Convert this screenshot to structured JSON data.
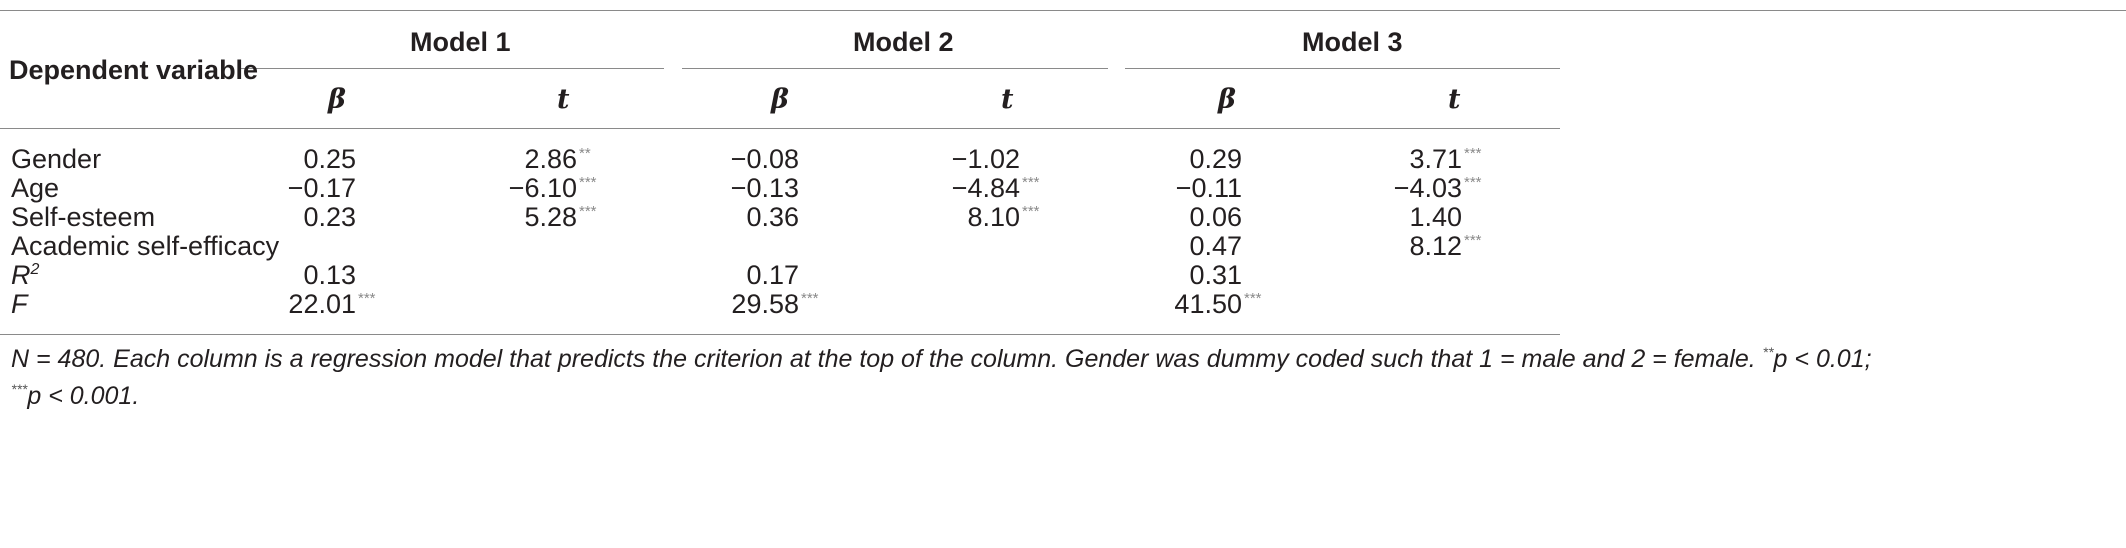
{
  "table": {
    "header": {
      "dependent_variable": "Dependent variable",
      "models": [
        "Model 1",
        "Model 2",
        "Model 3"
      ],
      "subcols": [
        "β",
        "t"
      ]
    },
    "rows": [
      {
        "label": "Gender",
        "cells": [
          {
            "v": "0.25",
            "sig": ""
          },
          {
            "v": "2.86",
            "sig": "**"
          },
          {
            "v": "−0.08",
            "sig": ""
          },
          {
            "v": "−1.02",
            "sig": ""
          },
          {
            "v": "0.29",
            "sig": ""
          },
          {
            "v": "3.71",
            "sig": "***"
          }
        ]
      },
      {
        "label": "Age",
        "cells": [
          {
            "v": "−0.17",
            "sig": ""
          },
          {
            "v": "−6.10",
            "sig": "***"
          },
          {
            "v": "−0.13",
            "sig": ""
          },
          {
            "v": "−4.84",
            "sig": "***"
          },
          {
            "v": "−0.11",
            "sig": ""
          },
          {
            "v": "−4.03",
            "sig": "***"
          }
        ]
      },
      {
        "label": "Self-esteem",
        "cells": [
          {
            "v": "0.23",
            "sig": ""
          },
          {
            "v": "5.28",
            "sig": "***"
          },
          {
            "v": "0.36",
            "sig": ""
          },
          {
            "v": "8.10",
            "sig": "***"
          },
          {
            "v": "0.06",
            "sig": ""
          },
          {
            "v": "1.40",
            "sig": ""
          }
        ]
      },
      {
        "label": "Academic self-efficacy",
        "cells": [
          {
            "v": "",
            "sig": ""
          },
          {
            "v": "",
            "sig": ""
          },
          {
            "v": "",
            "sig": ""
          },
          {
            "v": "",
            "sig": ""
          },
          {
            "v": "0.47",
            "sig": ""
          },
          {
            "v": "8.12",
            "sig": "***"
          }
        ]
      },
      {
        "label": "R",
        "label_sup": "2",
        "italic": true,
        "cells": [
          {
            "v": "0.13",
            "sig": ""
          },
          {
            "v": "",
            "sig": ""
          },
          {
            "v": "0.17",
            "sig": ""
          },
          {
            "v": "",
            "sig": ""
          },
          {
            "v": "0.31",
            "sig": ""
          },
          {
            "v": "",
            "sig": ""
          }
        ]
      },
      {
        "label": "F",
        "italic": true,
        "cells": [
          {
            "v": "22.01",
            "sig": "***"
          },
          {
            "v": "",
            "sig": ""
          },
          {
            "v": "29.58",
            "sig": "***"
          },
          {
            "v": "",
            "sig": ""
          },
          {
            "v": "41.50",
            "sig": "***"
          },
          {
            "v": "",
            "sig": ""
          }
        ]
      }
    ],
    "note": {
      "line1": "N = 480. Each column is a regression model that predicts the criterion at the top of the column. Gender was dummy coded such that 1 = male and 2 = female. ",
      "line1_sig": "**",
      "line1_end": "p < 0.01;",
      "line2_sig": "***",
      "line2_end": "p < 0.001."
    }
  }
}
